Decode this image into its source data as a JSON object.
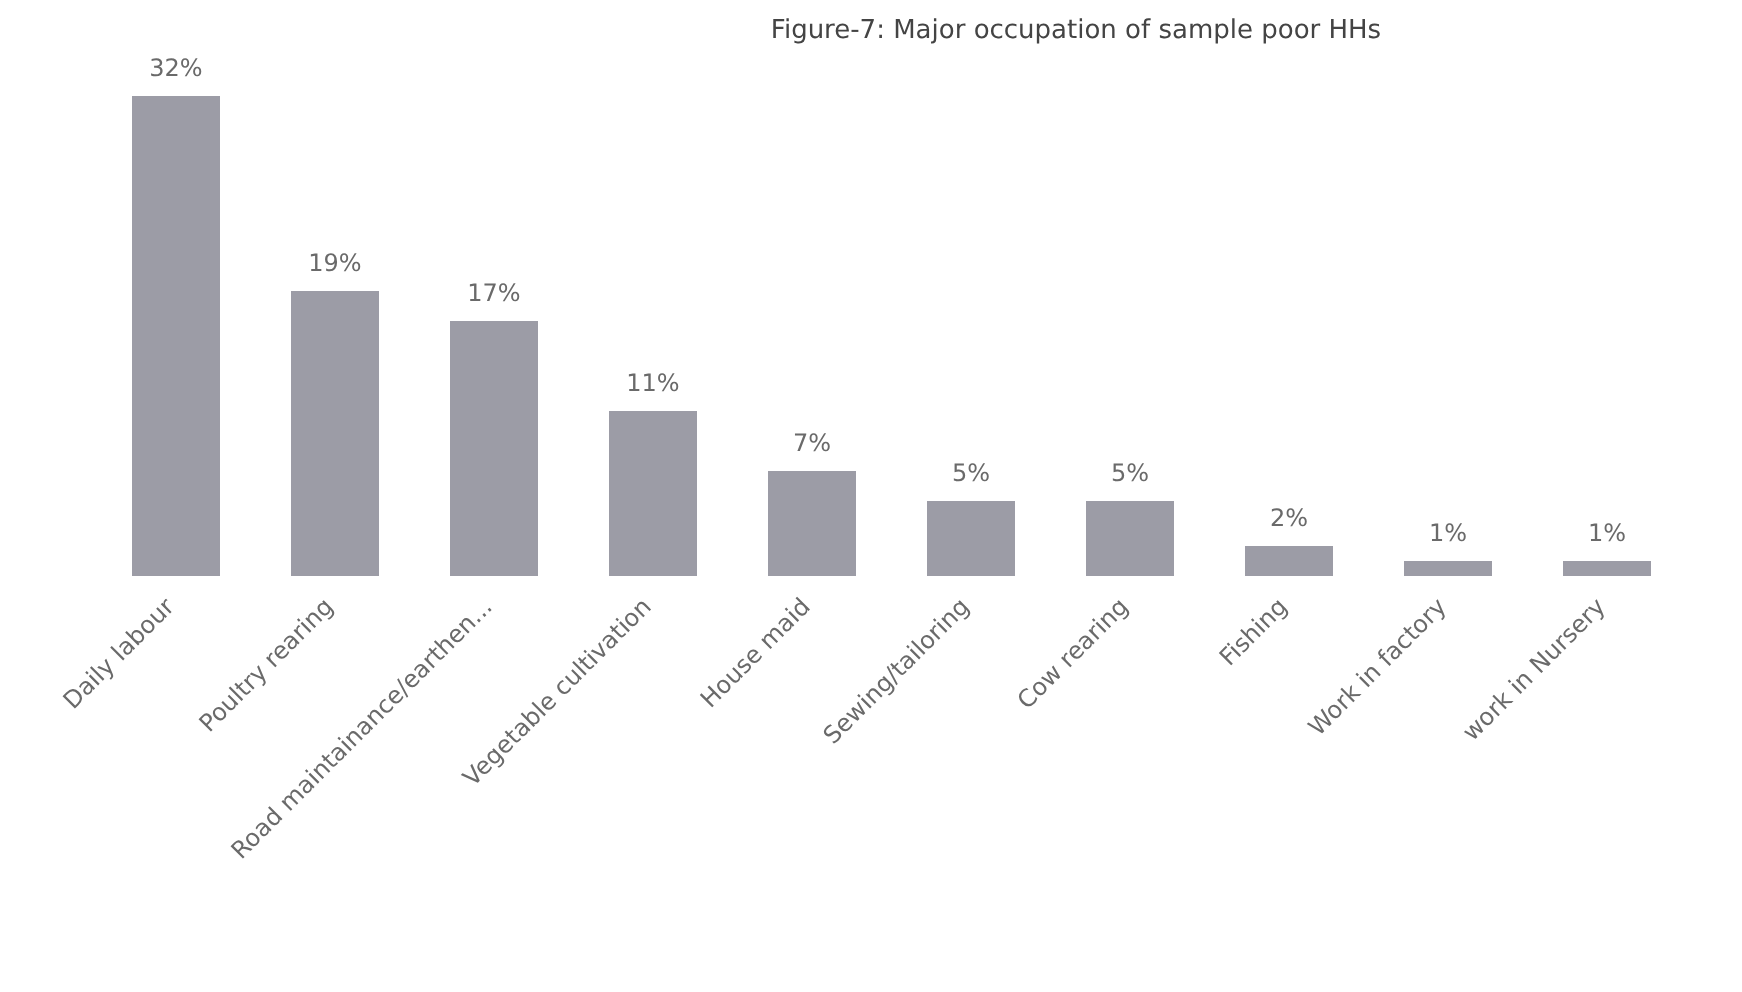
{
  "chart_data": {
    "type": "bar",
    "title": "Figure-7: Major occupation of sample poor HHs",
    "categories": [
      "Daily labour",
      "Poultry rearing",
      "Road maintainance/earthen...",
      "Vegetable cultivation",
      "House maid",
      "Sewing/tailoring",
      "Cow rearing",
      "Fishing",
      "Work in factory",
      "work in Nursery"
    ],
    "values": [
      32,
      19,
      17,
      11,
      7,
      5,
      5,
      2,
      1,
      1
    ],
    "value_labels": [
      "32%",
      "19%",
      "17%",
      "11%",
      "7%",
      "5%",
      "5%",
      "2%",
      "1%",
      "1%"
    ],
    "color": "#9c9ca6",
    "grid": false,
    "legend": false
  }
}
